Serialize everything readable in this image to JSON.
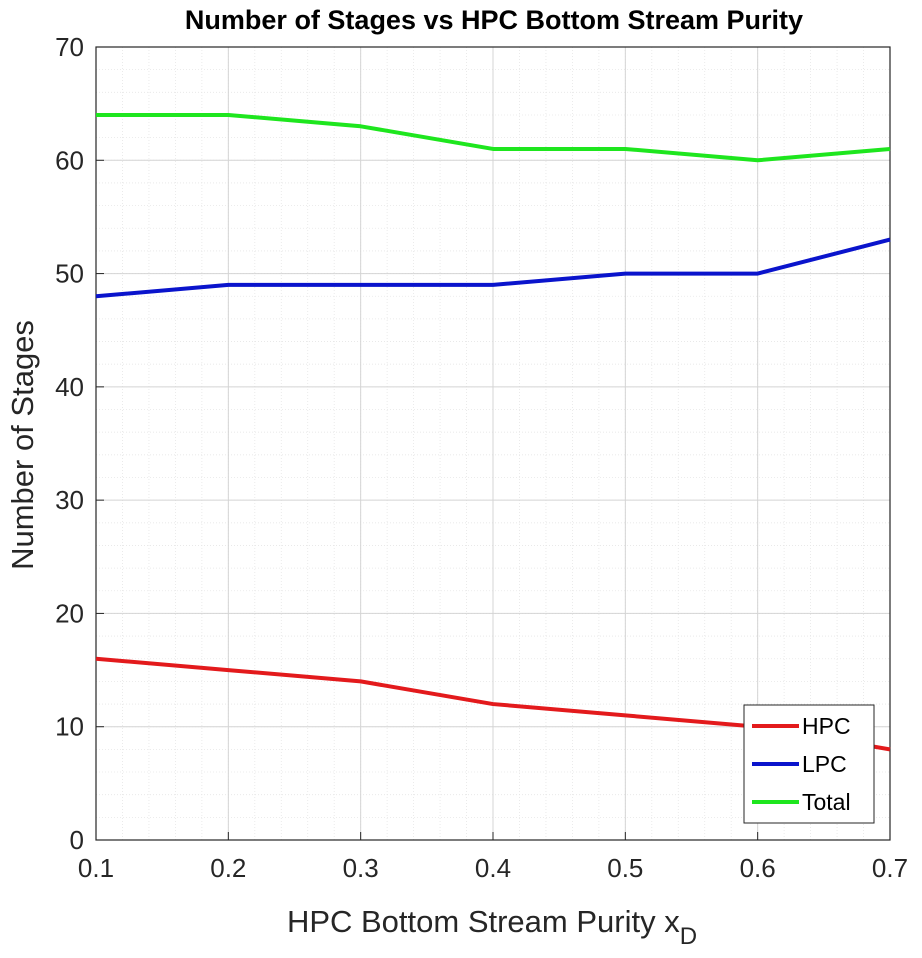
{
  "chart_data": {
    "type": "line",
    "title": "Number of Stages vs HPC Bottom Stream Purity",
    "xlabel": "HPC Bottom Stream Purity x",
    "xlabel_subscript": "D",
    "ylabel": "Number of Stages",
    "x": [
      0.1,
      0.2,
      0.3,
      0.4,
      0.5,
      0.6,
      0.7
    ],
    "xlim": [
      0.1,
      0.7
    ],
    "ylim": [
      0,
      70
    ],
    "xticks": [
      "0.1",
      "0.2",
      "0.3",
      "0.4",
      "0.5",
      "0.6",
      "0.7"
    ],
    "yticks": [
      "0",
      "10",
      "20",
      "30",
      "40",
      "50",
      "60",
      "70"
    ],
    "grid": true,
    "minor_grid": true,
    "legend_position": "bottom-right",
    "series": [
      {
        "name": "HPC",
        "color": "#e31a1c",
        "values": [
          16,
          15,
          14,
          12,
          11,
          10,
          8
        ]
      },
      {
        "name": "LPC",
        "color": "#0a14cc",
        "values": [
          48,
          49,
          49,
          49,
          50,
          50,
          53
        ]
      },
      {
        "name": "Total",
        "color": "#1ee61e",
        "values": [
          64,
          64,
          63,
          61,
          61,
          60,
          61
        ]
      }
    ]
  }
}
